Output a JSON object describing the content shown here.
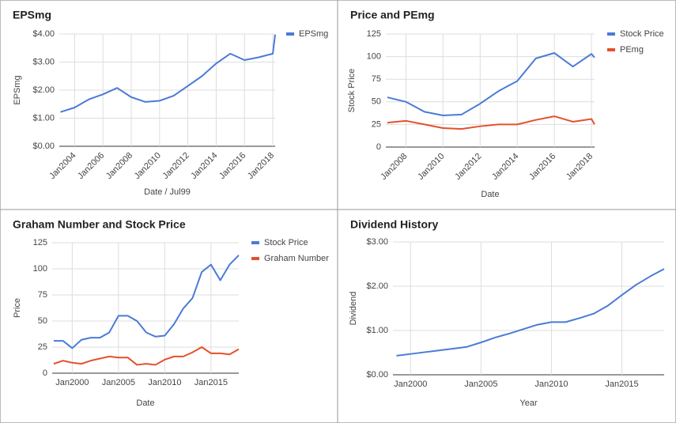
{
  "chart_data": [
    {
      "type": "line",
      "title": "EPSmg",
      "x_label": "Date / Jul99",
      "y_label": "EPSmg",
      "x": [
        "2003-01",
        "2004-01",
        "2005-01",
        "2006-01",
        "2007-01",
        "2008-01",
        "2009-01",
        "2010-01",
        "2011-01",
        "2012-01",
        "2013-01",
        "2014-01",
        "2015-01",
        "2016-01",
        "2017-01",
        "2018-01",
        "2018-03"
      ],
      "series": [
        {
          "name": "EPSmg",
          "color": "#4a7bd7",
          "values": [
            1.22,
            1.38,
            1.67,
            1.85,
            2.08,
            1.75,
            1.58,
            1.62,
            1.8,
            2.15,
            2.5,
            2.95,
            3.3,
            3.07,
            3.17,
            3.3,
            3.98
          ]
        }
      ],
      "xlim": [
        "2002-12",
        "2018-03"
      ],
      "xticks": [
        {
          "value": "2004-01",
          "label": "Jan2004"
        },
        {
          "value": "2006-01",
          "label": "Jan2006"
        },
        {
          "value": "2008-01",
          "label": "Jan2008"
        },
        {
          "value": "2010-01",
          "label": "Jan2010"
        },
        {
          "value": "2012-01",
          "label": "Jan2012"
        },
        {
          "value": "2014-01",
          "label": "Jan2014"
        },
        {
          "value": "2016-01",
          "label": "Jan2016"
        },
        {
          "value": "2018-01",
          "label": "Jan2018"
        }
      ],
      "ylim": [
        0,
        4
      ],
      "yticks": [
        {
          "value": 0,
          "label": "$0.00"
        },
        {
          "value": 1,
          "label": "$1.00"
        },
        {
          "value": 2,
          "label": "$2.00"
        },
        {
          "value": 3,
          "label": "$3.00"
        },
        {
          "value": 4,
          "label": "$4.00"
        }
      ],
      "grid": true,
      "legend": "right"
    },
    {
      "type": "line",
      "title": "Price and PEmg",
      "x_label": "Date",
      "y_label": "Stock Price",
      "x": [
        "2007-01",
        "2008-01",
        "2009-01",
        "2010-01",
        "2011-01",
        "2012-01",
        "2013-01",
        "2014-01",
        "2015-01",
        "2016-01",
        "2017-01",
        "2018-01",
        "2018-03"
      ],
      "series": [
        {
          "name": "Stock Price",
          "color": "#4a7bd7",
          "values": [
            55,
            50,
            39,
            35,
            36,
            48,
            62,
            73,
            98,
            104,
            89,
            103,
            99
          ]
        },
        {
          "name": "PEmg",
          "color": "#e4512c",
          "values": [
            27,
            29,
            25,
            21,
            20,
            23,
            25,
            25,
            30,
            34,
            28,
            31,
            25
          ]
        }
      ],
      "xlim": [
        "2006-12",
        "2018-03"
      ],
      "xticks": [
        {
          "value": "2008-01",
          "label": "Jan2008"
        },
        {
          "value": "2010-01",
          "label": "Jan2010"
        },
        {
          "value": "2012-01",
          "label": "Jan2012"
        },
        {
          "value": "2014-01",
          "label": "Jan2014"
        },
        {
          "value": "2016-01",
          "label": "Jan2016"
        },
        {
          "value": "2018-01",
          "label": "Jan2018"
        }
      ],
      "ylim": [
        0,
        125
      ],
      "yticks": [
        0,
        25,
        50,
        75,
        100,
        125
      ],
      "grid": true,
      "legend": "right"
    },
    {
      "type": "line",
      "title": "Graham Number and Stock Price",
      "x_label": "Date",
      "y_label": "Price",
      "x": [
        "1998-01",
        "1999-01",
        "2000-01",
        "2001-01",
        "2002-01",
        "2003-01",
        "2004-01",
        "2005-01",
        "2006-01",
        "2007-01",
        "2008-01",
        "2009-01",
        "2010-01",
        "2011-01",
        "2012-01",
        "2013-01",
        "2014-01",
        "2015-01",
        "2016-01",
        "2017-01",
        "2018-01"
      ],
      "series": [
        {
          "name": "Stock Price",
          "color": "#4a7bd7",
          "values": [
            31,
            31,
            24,
            32,
            34,
            34,
            39,
            55,
            55,
            50,
            39,
            35,
            36,
            47,
            62,
            72,
            97,
            104,
            89,
            104,
            113
          ]
        },
        {
          "name": "Graham Number",
          "color": "#e4512c",
          "values": [
            9,
            12,
            10,
            9,
            12,
            14,
            16,
            15,
            15,
            8,
            9,
            8,
            13,
            16,
            16,
            20,
            25,
            19,
            19,
            18,
            23
          ]
        }
      ],
      "xlim": [
        "1997-11",
        "2018-01"
      ],
      "xticks": [
        {
          "value": "2000-01",
          "label": "Jan2000"
        },
        {
          "value": "2005-01",
          "label": "Jan2005"
        },
        {
          "value": "2010-01",
          "label": "Jan2010"
        },
        {
          "value": "2015-01",
          "label": "Jan2015"
        }
      ],
      "ylim": [
        0,
        125
      ],
      "yticks": [
        0,
        25,
        50,
        75,
        100,
        125
      ],
      "grid": true,
      "legend": "right"
    },
    {
      "type": "line",
      "title": "Dividend History",
      "x_label": "Year",
      "y_label": "Dividend",
      "x": [
        "1999-01",
        "2000-01",
        "2001-01",
        "2002-01",
        "2003-01",
        "2004-01",
        "2005-01",
        "2006-01",
        "2007-01",
        "2008-01",
        "2009-01",
        "2010-01",
        "2011-01",
        "2012-01",
        "2013-01",
        "2014-01",
        "2015-01",
        "2016-01",
        "2017-01",
        "2018-01"
      ],
      "color": "#4a7bd7",
      "values": [
        0.43,
        0.47,
        0.51,
        0.55,
        0.59,
        0.63,
        0.73,
        0.84,
        0.93,
        1.03,
        1.13,
        1.19,
        1.19,
        1.28,
        1.38,
        1.56,
        1.8,
        2.03,
        2.22,
        2.39
      ],
      "xlim": [
        "1998-10",
        "2018-01"
      ],
      "xticks": [
        {
          "value": "2000-01",
          "label": "Jan2000"
        },
        {
          "value": "2005-01",
          "label": "Jan2005"
        },
        {
          "value": "2010-01",
          "label": "Jan2010"
        },
        {
          "value": "2015-01",
          "label": "Jan2015"
        }
      ],
      "ylim": [
        0,
        3
      ],
      "yticks": [
        {
          "value": 0,
          "label": "$0.00"
        },
        {
          "value": 1,
          "label": "$1.00"
        },
        {
          "value": 2,
          "label": "$2.00"
        },
        {
          "value": 3,
          "label": "$3.00"
        }
      ],
      "grid": true
    }
  ]
}
